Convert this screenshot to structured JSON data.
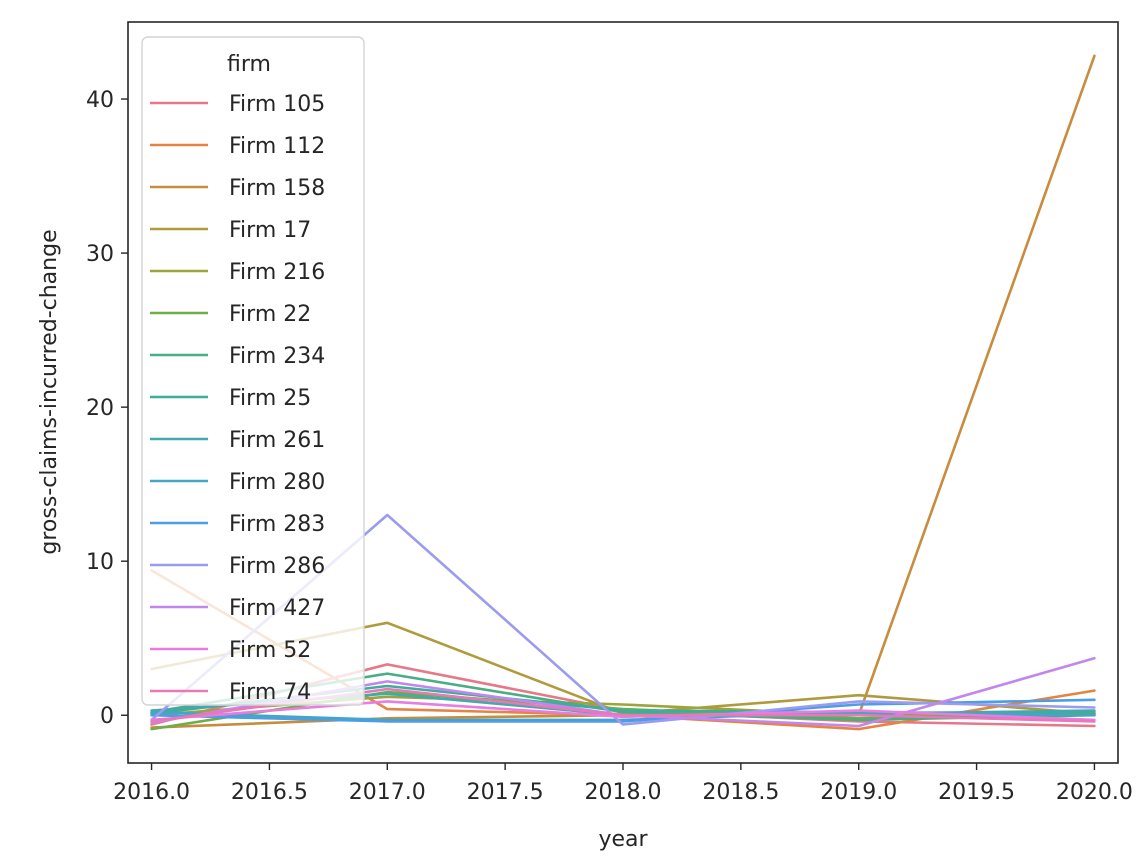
{
  "chart_data": {
    "type": "line",
    "title": "",
    "xlabel": "year",
    "ylabel": "gross-claims-incurred-change",
    "xlim": [
      2015.9,
      2020.1
    ],
    "ylim": [
      -3.1,
      45.0
    ],
    "xticks": [
      "2016.0",
      "2016.5",
      "2017.0",
      "2017.5",
      "2018.0",
      "2018.5",
      "2019.0",
      "2019.5",
      "2020.0"
    ],
    "yticks": [
      "0",
      "10",
      "20",
      "30",
      "40"
    ],
    "grid": false,
    "legend": {
      "title": "firm",
      "placement": "upper-left"
    },
    "x": [
      2016,
      2017,
      2018,
      2019,
      2020
    ],
    "series": [
      {
        "name": "Firm 105",
        "color": "#e8778a",
        "values": [
          -0.6,
          3.3,
          0.3,
          -0.4,
          -0.7
        ]
      },
      {
        "name": "Firm 112",
        "color": "#e58343",
        "values": [
          9.4,
          0.4,
          0.0,
          -0.9,
          1.6
        ]
      },
      {
        "name": "Firm 158",
        "color": "#c78c3e",
        "values": [
          -0.8,
          -0.2,
          0.0,
          0.0,
          42.8
        ]
      },
      {
        "name": "Firm 17",
        "color": "#b09b3c",
        "values": [
          3.0,
          6.0,
          0.1,
          1.3,
          0.1
        ]
      },
      {
        "name": "Firm 216",
        "color": "#9ca43d",
        "values": [
          0.0,
          1.2,
          0.7,
          0.0,
          0.1
        ]
      },
      {
        "name": "Firm 22",
        "color": "#6cae47",
        "values": [
          -0.9,
          1.5,
          0.4,
          -0.2,
          0.2
        ]
      },
      {
        "name": "Firm 234",
        "color": "#48ae83",
        "values": [
          0.2,
          2.7,
          0.2,
          -0.3,
          0.0
        ]
      },
      {
        "name": "Firm 25",
        "color": "#3fad9c",
        "values": [
          0.1,
          1.9,
          0.3,
          0.2,
          0.1
        ]
      },
      {
        "name": "Firm 261",
        "color": "#42a9ad",
        "values": [
          0.3,
          1.4,
          0.0,
          0.1,
          0.3
        ]
      },
      {
        "name": "Firm 280",
        "color": "#44a6c4",
        "values": [
          0.2,
          -0.3,
          -0.3,
          0.2,
          0.0
        ]
      },
      {
        "name": "Firm 283",
        "color": "#4b9de6",
        "values": [
          0.0,
          -0.4,
          -0.4,
          0.7,
          1.0
        ]
      },
      {
        "name": "Firm 286",
        "color": "#9b9cf0",
        "values": [
          -0.3,
          13.0,
          -0.6,
          0.9,
          0.5
        ]
      },
      {
        "name": "Firm 427",
        "color": "#c187ec",
        "values": [
          -0.5,
          2.2,
          0.0,
          -0.7,
          3.7
        ]
      },
      {
        "name": "Firm 52",
        "color": "#e97be3",
        "values": [
          -0.3,
          0.9,
          -0.1,
          0.3,
          -0.3
        ]
      },
      {
        "name": "Firm 74",
        "color": "#e978b8",
        "values": [
          -0.4,
          1.7,
          0.0,
          0.0,
          -0.4
        ]
      }
    ]
  }
}
